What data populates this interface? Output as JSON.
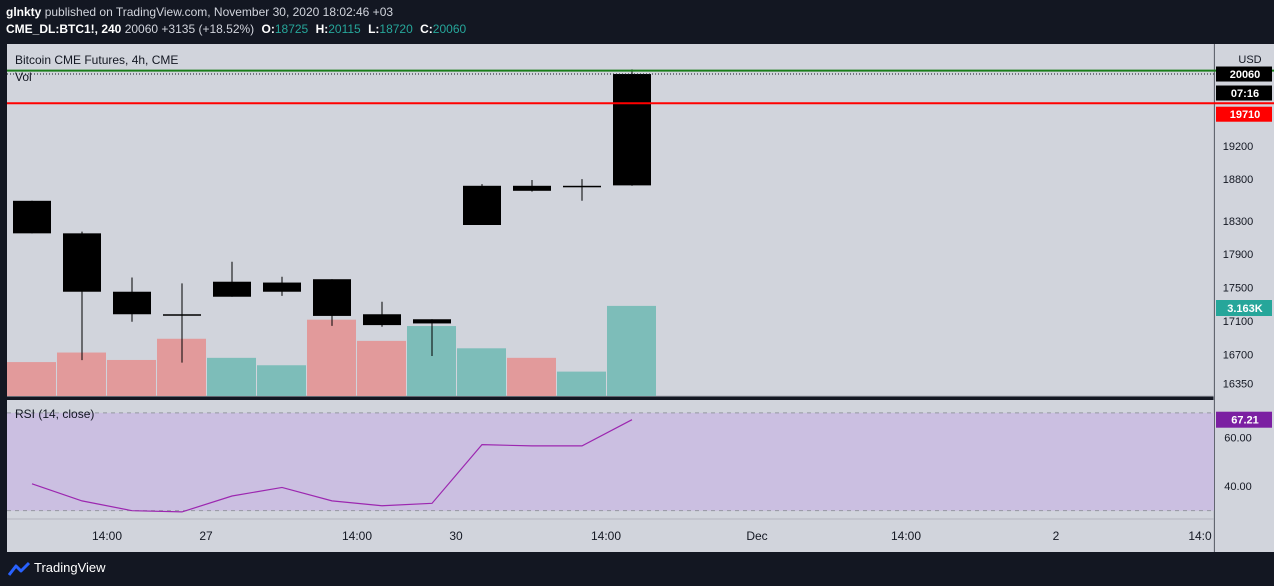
{
  "header": {
    "user": "glnkty",
    "published_text": "published on TradingView.com, November 30, 2020 18:02:46 +03",
    "symbol": "CME_DL:BTC1!, 240",
    "last": "20060",
    "change": "+3135 (+18.52%)",
    "o_label": "O:",
    "o": "18725",
    "h_label": "H:",
    "h": "20115",
    "l_label": "L:",
    "l": "18720",
    "c_label": "C:",
    "c": "20060"
  },
  "pane": {
    "title": "Bitcoin CME Futures, 4h, CME",
    "vol_label": "Vol",
    "rsi_label": "RSI (14, close)"
  },
  "price_axis": {
    "currency": "USD",
    "ticks": [
      "19200",
      "18800",
      "18300",
      "17900",
      "17500",
      "17100",
      "16700",
      "16350"
    ],
    "rsi_ticks": [
      "60.00",
      "40.00"
    ],
    "last_price": "20060",
    "countdown": "07:16",
    "line_price": "19710",
    "volume_badge": "3.163K",
    "rsi_badge": "67.21"
  },
  "time_axis": [
    "14:00",
    "27",
    "14:00",
    "30",
    "14:00",
    "Dec",
    "14:00",
    "2",
    "14:0"
  ],
  "footer": {
    "brand": "TradingView"
  },
  "colors": {
    "background": "#131722",
    "pane": "#d1d4dc",
    "candle": "#000000",
    "vol_up": "#7dbdb9",
    "vol_down": "#e29a9b",
    "rsi_band": "#cbbfe1",
    "rsi_line": "#9c27b0",
    "hline_red": "#ff0000",
    "hline_green": "#1b7d1b",
    "badge_rsi": "#7b1fa2",
    "badge_vol": "#26a69a"
  },
  "chart_data": {
    "type": "candlestick",
    "ohlc": [
      {
        "o": 18540,
        "h": 18540,
        "l": 18150,
        "c": 18150
      },
      {
        "o": 18150,
        "h": 18170,
        "l": 16630,
        "c": 17450
      },
      {
        "o": 17450,
        "h": 17620,
        "l": 17090,
        "c": 17180
      },
      {
        "o": 17170,
        "h": 17550,
        "l": 16600,
        "c": 17180
      },
      {
        "o": 17390,
        "h": 17810,
        "l": 17390,
        "c": 17570
      },
      {
        "o": 17560,
        "h": 17630,
        "l": 17400,
        "c": 17450
      },
      {
        "o": 17600,
        "h": 17600,
        "l": 17040,
        "c": 17160
      },
      {
        "o": 17180,
        "h": 17330,
        "l": 17030,
        "c": 17050
      },
      {
        "o": 17070,
        "h": 17120,
        "l": 16680,
        "c": 17120
      },
      {
        "o": 18250,
        "h": 18740,
        "l": 18250,
        "c": 18720
      },
      {
        "o": 18720,
        "h": 18790,
        "l": 18650,
        "c": 18660
      },
      {
        "o": 18720,
        "h": 18800,
        "l": 18540,
        "c": 18720
      },
      {
        "o": 18725,
        "h": 20115,
        "l": 18720,
        "c": 20060
      }
    ],
    "volume_dir": [
      "down",
      "down",
      "down",
      "down",
      "up",
      "up",
      "down",
      "down",
      "up",
      "up",
      "down",
      "up",
      "up"
    ],
    "volume_relative": [
      0.32,
      0.41,
      0.34,
      0.54,
      0.36,
      0.29,
      0.72,
      0.52,
      0.66,
      0.45,
      0.36,
      0.23,
      0.85
    ],
    "volume_last": "3.163K",
    "rsi": [
      41,
      34,
      30,
      29.5,
      36,
      39.5,
      34,
      32,
      33,
      57,
      56.5,
      56.5,
      67.21
    ],
    "price_range": [
      16200,
      20300
    ],
    "rsi_range": [
      27,
      72
    ],
    "hlines": [
      {
        "price": 19710,
        "color": "red"
      },
      {
        "price": 20100,
        "color": "green"
      }
    ]
  }
}
